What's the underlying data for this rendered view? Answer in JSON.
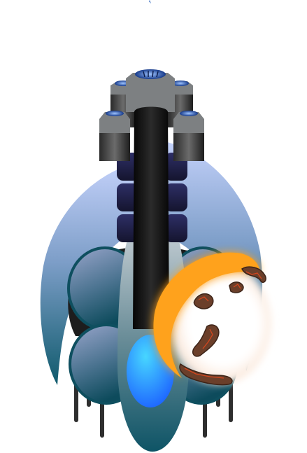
{
  "scene": {
    "type": "game-sprite",
    "subject": "spaceship-with-molten-moon-orb"
  },
  "palette": {
    "background": "#ffffff",
    "hull_light": "#b8c6f2",
    "hull_dark": "#0f5a6c",
    "turret_grey": "#7d8082",
    "barrel_black": "#111111",
    "armor_navy": "#20204a",
    "thruster_blue": "#1e8fff",
    "moon_orange": "#ffa21a",
    "lava_red": "#d2461e",
    "dome_top": "#8fa0c8",
    "dome_bottom": "#0d5566"
  },
  "parts": {
    "turrets": 5,
    "armor_plates": 6,
    "side_domes": 4,
    "landing_struts": 6,
    "lava_spots": 5
  }
}
